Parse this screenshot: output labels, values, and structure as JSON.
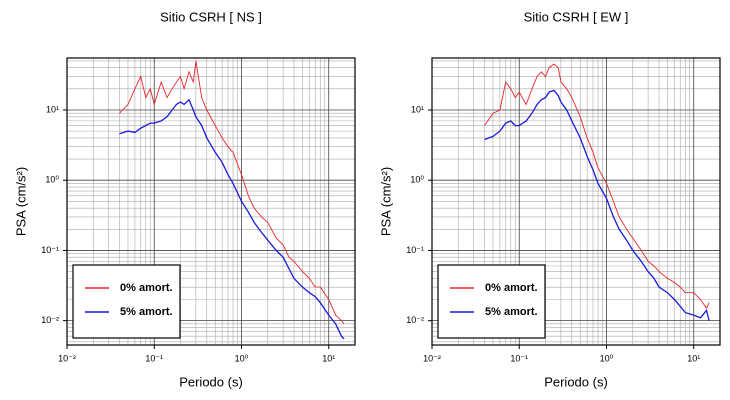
{
  "chart_data": [
    {
      "type": "line",
      "title": "Sitio CSRH [ NS ]",
      "x_label": "Periodo (s)",
      "y_label": "PSA (cm/s²)",
      "xscale": "log",
      "yscale": "log",
      "grid": true,
      "legend": "lower left",
      "xlim": [
        0.01,
        20
      ],
      "ylim": [
        0.0045,
        55
      ],
      "xticks": [
        {
          "value": 0.01,
          "label": "10⁻²"
        },
        {
          "value": 0.1,
          "label": "10⁻¹"
        },
        {
          "value": 1,
          "label": "10⁰"
        },
        {
          "value": 10,
          "label": "10¹"
        }
      ],
      "yticks": [
        {
          "value": 0.01,
          "label": "10⁻²"
        },
        {
          "value": 0.1,
          "label": "10⁻¹"
        },
        {
          "value": 1,
          "label": "10⁰"
        },
        {
          "value": 10,
          "label": "10¹"
        }
      ],
      "xminor": [
        0.02,
        0.03,
        0.04,
        0.05,
        0.06,
        0.07,
        0.08,
        0.09,
        0.2,
        0.3,
        0.4,
        0.5,
        0.6,
        0.7,
        0.8,
        0.9,
        2,
        3,
        4,
        5,
        6,
        7,
        8,
        9
      ],
      "yminor": [
        0.005,
        0.006,
        0.007,
        0.008,
        0.009,
        0.02,
        0.03,
        0.04,
        0.05,
        0.06,
        0.07,
        0.08,
        0.09,
        0.2,
        0.3,
        0.4,
        0.5,
        0.6,
        0.7,
        0.8,
        0.9,
        2,
        3,
        4,
        5,
        6,
        7,
        8,
        9,
        20,
        30,
        40,
        50
      ],
      "x": [
        0.04,
        0.05,
        0.06,
        0.07,
        0.08,
        0.09,
        0.1,
        0.12,
        0.14,
        0.16,
        0.18,
        0.2,
        0.22,
        0.25,
        0.28,
        0.3,
        0.35,
        0.4,
        0.5,
        0.6,
        0.7,
        0.8,
        1,
        1.2,
        1.4,
        1.7,
        2,
        2.5,
        3,
        3.5,
        4,
        5,
        6,
        7,
        8,
        10,
        12,
        14,
        15
      ],
      "series": [
        {
          "name": "0% amort.",
          "color": "#e8262a",
          "values": [
            9,
            12,
            20,
            30,
            15,
            20,
            12,
            25,
            15,
            20,
            25,
            30,
            20,
            35,
            25,
            50,
            15,
            10,
            6,
            4,
            3,
            2.5,
            1.2,
            0.6,
            0.4,
            0.3,
            0.25,
            0.15,
            0.12,
            0.08,
            0.07,
            0.05,
            0.04,
            0.03,
            0.03,
            0.02,
            0.012,
            0.01,
            0.009
          ]
        },
        {
          "name": "5% amort.",
          "color": "#1a1adb",
          "values": [
            4.6,
            5,
            4.8,
            5.5,
            6,
            6.5,
            6.5,
            7,
            8,
            10,
            12,
            13,
            12,
            14,
            10,
            8,
            6,
            4,
            2.5,
            1.8,
            1.2,
            0.9,
            0.5,
            0.35,
            0.25,
            0.18,
            0.14,
            0.1,
            0.08,
            0.055,
            0.04,
            0.03,
            0.025,
            0.022,
            0.018,
            0.012,
            0.009,
            0.006,
            0.0055
          ]
        }
      ]
    },
    {
      "type": "line",
      "title": "Sitio CSRH [ EW ]",
      "x_label": "Periodo (s)",
      "y_label": "PSA (cm/s²)",
      "xscale": "log",
      "yscale": "log",
      "grid": true,
      "legend": "lower left",
      "xlim": [
        0.01,
        20
      ],
      "ylim": [
        0.0045,
        55
      ],
      "xticks": [
        {
          "value": 0.01,
          "label": "10⁻²"
        },
        {
          "value": 0.1,
          "label": "10⁻¹"
        },
        {
          "value": 1,
          "label": "10⁰"
        },
        {
          "value": 10,
          "label": "10¹"
        }
      ],
      "yticks": [
        {
          "value": 0.01,
          "label": "10⁻²"
        },
        {
          "value": 0.1,
          "label": "10⁻¹"
        },
        {
          "value": 1,
          "label": "10⁰"
        },
        {
          "value": 10,
          "label": "10¹"
        }
      ],
      "xminor": [
        0.02,
        0.03,
        0.04,
        0.05,
        0.06,
        0.07,
        0.08,
        0.09,
        0.2,
        0.3,
        0.4,
        0.5,
        0.6,
        0.7,
        0.8,
        0.9,
        2,
        3,
        4,
        5,
        6,
        7,
        8,
        9
      ],
      "yminor": [
        0.005,
        0.006,
        0.007,
        0.008,
        0.009,
        0.02,
        0.03,
        0.04,
        0.05,
        0.06,
        0.07,
        0.08,
        0.09,
        0.2,
        0.3,
        0.4,
        0.5,
        0.6,
        0.7,
        0.8,
        0.9,
        2,
        3,
        4,
        5,
        6,
        7,
        8,
        9,
        20,
        30,
        40,
        50
      ],
      "x": [
        0.04,
        0.05,
        0.06,
        0.07,
        0.08,
        0.09,
        0.1,
        0.12,
        0.14,
        0.16,
        0.18,
        0.2,
        0.22,
        0.25,
        0.28,
        0.3,
        0.35,
        0.4,
        0.5,
        0.6,
        0.7,
        0.8,
        1,
        1.2,
        1.4,
        1.7,
        2,
        2.5,
        3,
        3.5,
        4,
        5,
        6,
        7,
        8,
        10,
        12,
        14,
        15
      ],
      "series": [
        {
          "name": "0% amort.",
          "color": "#e8262a",
          "values": [
            6,
            9,
            10,
            25,
            20,
            15,
            18,
            12,
            20,
            30,
            35,
            30,
            40,
            45,
            40,
            25,
            20,
            15,
            8,
            4,
            2.5,
            1.5,
            0.9,
            0.5,
            0.3,
            0.2,
            0.15,
            0.1,
            0.07,
            0.06,
            0.05,
            0.04,
            0.035,
            0.03,
            0.025,
            0.025,
            0.02,
            0.015,
            0.018
          ]
        },
        {
          "name": "5% amort.",
          "color": "#1a1adb",
          "values": [
            3.8,
            4.2,
            5,
            6.5,
            7,
            6,
            6,
            7,
            9,
            12,
            14,
            15,
            18,
            19,
            16,
            13,
            10,
            7,
            4,
            2.2,
            1.4,
            0.9,
            0.55,
            0.3,
            0.2,
            0.14,
            0.1,
            0.07,
            0.05,
            0.04,
            0.03,
            0.025,
            0.02,
            0.016,
            0.013,
            0.012,
            0.011,
            0.014,
            0.01
          ]
        }
      ]
    }
  ]
}
